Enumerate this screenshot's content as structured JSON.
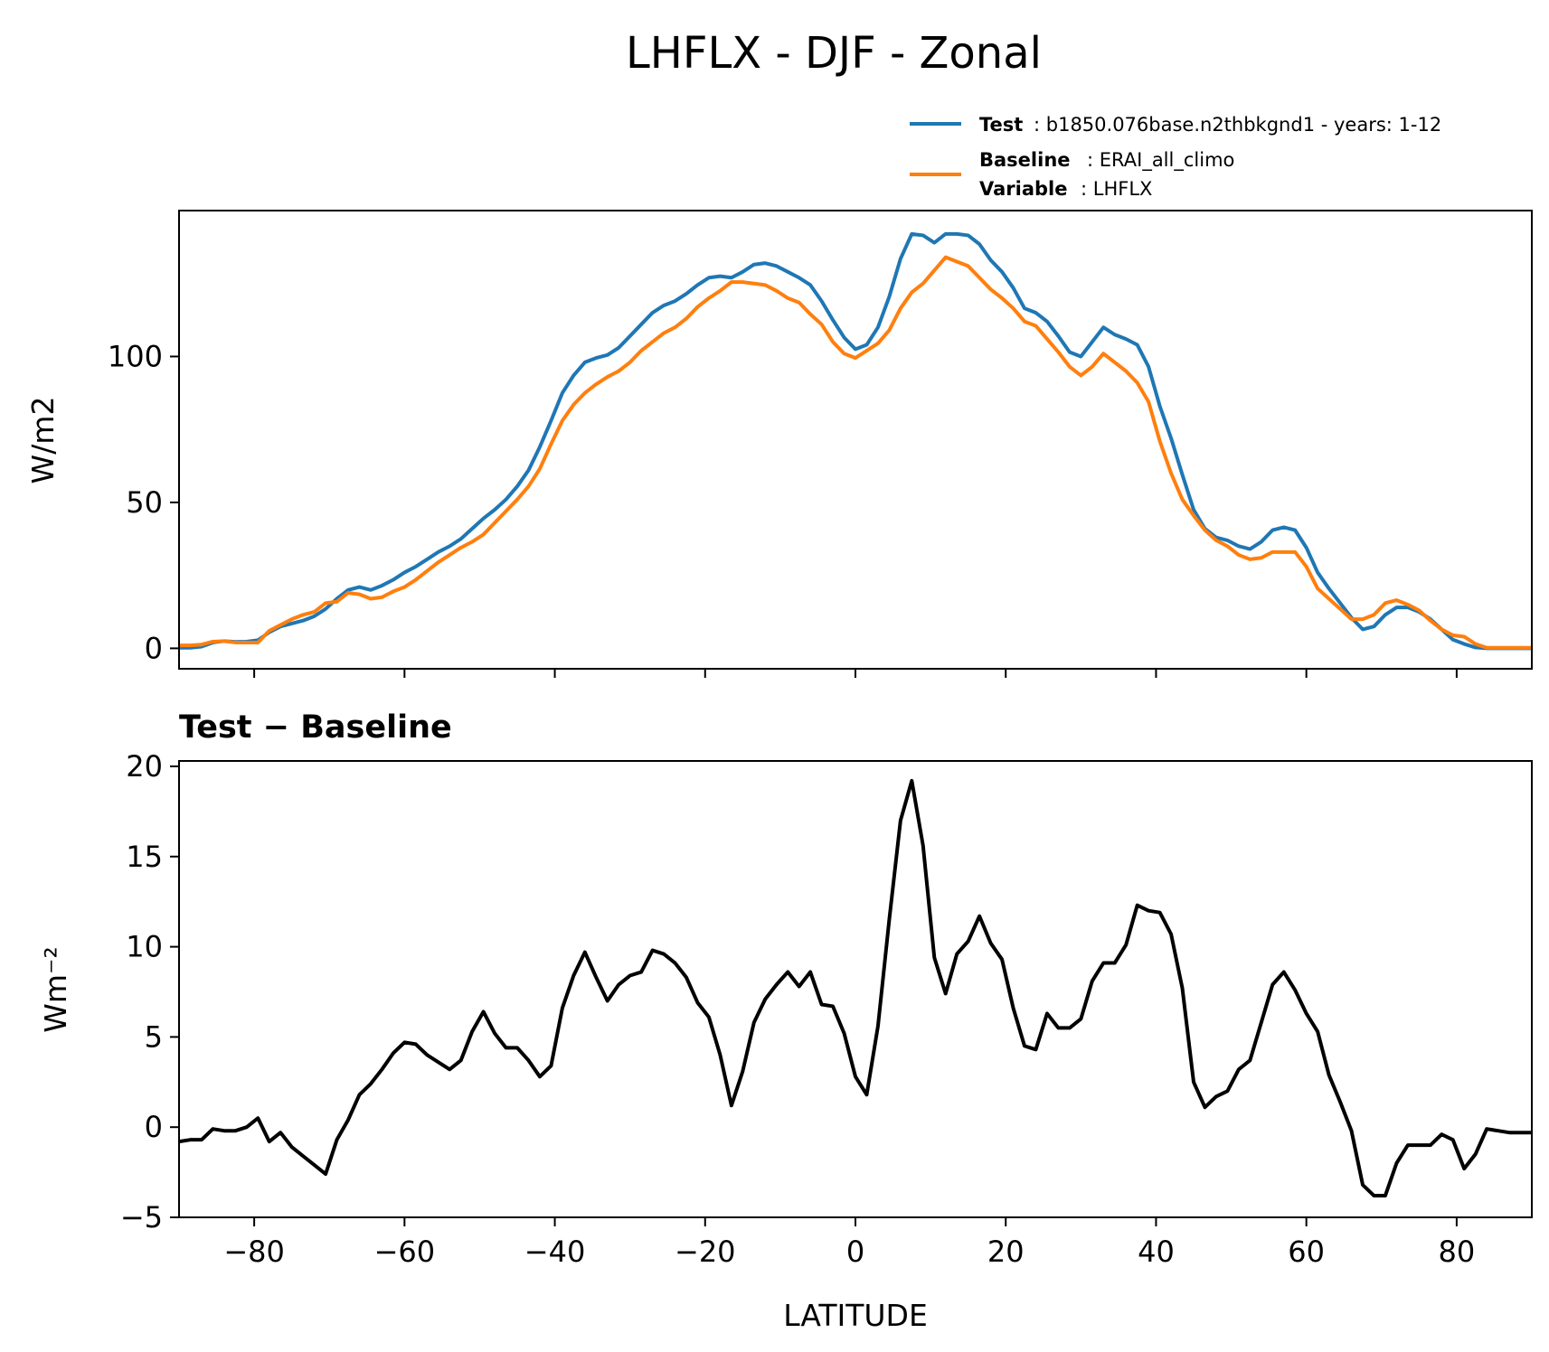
{
  "figure": {
    "title": "LHFLX - DJF - Zonal"
  },
  "legend": {
    "test_label": "Test",
    "test_text": ": b1850.076base.n2thbkgnd1 - years: 1-12",
    "baseline_label": "Baseline",
    "baseline_text": ": ERAI_all_climo",
    "variable_label": "Variable",
    "variable_text": ": LHFLX"
  },
  "colors": {
    "test": "#1f77b4",
    "baseline": "#ff7f0e",
    "diff": "#000000"
  },
  "chart_data": [
    {
      "type": "line",
      "title": "",
      "xlabel": "",
      "ylabel": "W/m2",
      "xlim": [
        -90,
        90
      ],
      "ylim": [
        -7,
        150
      ],
      "xticks": [
        -80,
        -60,
        -40,
        -20,
        0,
        20,
        40,
        60,
        80
      ],
      "yticks": [
        0,
        50,
        100
      ],
      "ytick_labels": [
        "0",
        "50",
        "100"
      ],
      "legend_position": "above-right",
      "grid": false,
      "x": [
        -90,
        -88.5,
        -87,
        -85.5,
        -84,
        -82.5,
        -81,
        -79.5,
        -78,
        -76.5,
        -75,
        -73.5,
        -72,
        -70.5,
        -69,
        -67.5,
        -66,
        -64.5,
        -63,
        -61.5,
        -60,
        -58.5,
        -57,
        -55.5,
        -54,
        -52.5,
        -51,
        -49.5,
        -48,
        -46.5,
        -45,
        -43.5,
        -42,
        -40.5,
        -39,
        -37.5,
        -36,
        -34.5,
        -33,
        -31.5,
        -30,
        -28.5,
        -27,
        -25.5,
        -24,
        -22.5,
        -21,
        -19.5,
        -18,
        -16.5,
        -15,
        -13.5,
        -12,
        -10.5,
        -9,
        -7.5,
        -6,
        -4.5,
        -3,
        -1.5,
        0,
        1.5,
        3,
        4.5,
        6,
        7.5,
        9,
        10.5,
        12,
        13.5,
        15,
        16.5,
        18,
        19.5,
        21,
        22.5,
        24,
        25.5,
        27,
        28.5,
        30,
        31.5,
        33,
        34.5,
        36,
        37.5,
        39,
        40.5,
        42,
        43.5,
        45,
        46.5,
        48,
        49.5,
        51,
        52.5,
        54,
        55.5,
        57,
        58.5,
        60,
        61.5,
        63,
        64.5,
        66,
        67.5,
        69,
        70.5,
        72,
        73.5,
        75,
        76.5,
        78,
        79.5,
        81,
        82.5,
        84,
        85.5,
        87,
        88.5,
        90
      ],
      "series": [
        {
          "name": "Test",
          "color": "#1f77b4",
          "values": [
            0.2,
            0.2,
            0.6,
            2.0,
            2.5,
            2.2,
            2.3,
            2.8,
            5.5,
            7.5,
            8.5,
            9.5,
            11.0,
            13.5,
            17.0,
            20.0,
            21.0,
            20.0,
            21.5,
            23.5,
            26.0,
            28.0,
            30.5,
            33.0,
            35.0,
            37.5,
            41.0,
            44.5,
            47.5,
            51.0,
            55.5,
            61.0,
            69.0,
            78.0,
            87.5,
            93.5,
            98.0,
            99.5,
            100.5,
            103.0,
            107.0,
            111.0,
            115.0,
            117.5,
            119.0,
            121.5,
            124.5,
            127.0,
            127.5,
            127.0,
            129.0,
            131.5,
            132.0,
            131.0,
            129.0,
            127.0,
            124.5,
            119.0,
            112.5,
            106.5,
            102.5,
            104.0,
            110.0,
            120.5,
            133.5,
            142.0,
            141.5,
            139.0,
            142.0,
            142.0,
            141.5,
            138.5,
            133.0,
            129.0,
            123.5,
            116.5,
            115.0,
            112.0,
            107.0,
            101.5,
            100.0,
            105.0,
            110.0,
            107.5,
            106.0,
            104.0,
            96.5,
            83.0,
            72.0,
            59.5,
            47.5,
            41.0,
            38.0,
            37.0,
            35.0,
            34.0,
            36.5,
            40.5,
            41.5,
            40.5,
            34.5,
            26.0,
            20.5,
            15.5,
            10.5,
            6.5,
            7.5,
            11.5,
            14.0,
            14.0,
            12.5,
            10.0,
            6.5,
            3.0,
            1.5,
            0.3,
            0,
            0,
            0,
            0,
            0
          ]
        },
        {
          "name": "Baseline",
          "color": "#ff7f0e",
          "values": [
            1.0,
            1.0,
            1.3,
            2.3,
            2.5,
            2.0,
            2.0,
            2.0,
            6.0,
            8.0,
            10.0,
            11.5,
            12.5,
            15.5,
            16.0,
            19.0,
            18.5,
            17.0,
            17.5,
            19.5,
            21.0,
            23.5,
            26.5,
            29.5,
            32.0,
            34.5,
            36.5,
            39.0,
            43.0,
            47.0,
            51.0,
            55.5,
            61.5,
            70.0,
            78.0,
            83.5,
            87.5,
            90.5,
            93.0,
            95.0,
            98.0,
            102.0,
            105.0,
            108.0,
            110.0,
            113.0,
            117.0,
            120.0,
            122.5,
            125.5,
            125.5,
            125.0,
            124.5,
            122.5,
            120.0,
            118.5,
            114.5,
            111.0,
            105.0,
            101.0,
            99.5,
            102.0,
            104.5,
            109.0,
            116.5,
            122.0,
            125.0,
            129.5,
            134.0,
            132.5,
            131.0,
            127.0,
            123.0,
            120.0,
            116.5,
            112.0,
            110.5,
            106.0,
            101.5,
            96.5,
            93.5,
            96.5,
            101.0,
            98.0,
            95.0,
            91.0,
            84.5,
            71.0,
            60.0,
            51.0,
            45.5,
            40.5,
            37.0,
            35.0,
            32.0,
            30.5,
            31.0,
            33.0,
            33.0,
            33.0,
            28.0,
            20.5,
            17.0,
            13.5,
            10.0,
            10.0,
            11.5,
            15.5,
            16.5,
            15.0,
            13.0,
            9.5,
            6.5,
            4.5,
            4.0,
            1.5,
            0.2,
            0.2,
            0.2,
            0.2,
            0.2
          ]
        }
      ]
    },
    {
      "type": "line",
      "title": "Test − Baseline",
      "xlabel": "LATITUDE",
      "ylabel": "Wm⁻²",
      "xlim": [
        -90,
        90
      ],
      "ylim": [
        -5,
        20.3
      ],
      "xticks": [
        -80,
        -60,
        -40,
        -20,
        0,
        20,
        40,
        60,
        80
      ],
      "xtick_labels": [
        "−80",
        "−60",
        "−40",
        "−20",
        "0",
        "20",
        "40",
        "60",
        "80"
      ],
      "yticks": [
        -5,
        0,
        5,
        10,
        15,
        20
      ],
      "ytick_labels": [
        "−5",
        "0",
        "5",
        "10",
        "15",
        "20"
      ],
      "grid": false,
      "x": [
        -90,
        -88.5,
        -87,
        -85.5,
        -84,
        -82.5,
        -81,
        -79.5,
        -78,
        -76.5,
        -75,
        -73.5,
        -72,
        -70.5,
        -69,
        -67.5,
        -66,
        -64.5,
        -63,
        -61.5,
        -60,
        -58.5,
        -57,
        -55.5,
        -54,
        -52.5,
        -51,
        -49.5,
        -48,
        -46.5,
        -45,
        -43.5,
        -42,
        -40.5,
        -39,
        -37.5,
        -36,
        -34.5,
        -33,
        -31.5,
        -30,
        -28.5,
        -27,
        -25.5,
        -24,
        -22.5,
        -21,
        -19.5,
        -18,
        -16.5,
        -15,
        -13.5,
        -12,
        -10.5,
        -9,
        -7.5,
        -6,
        -4.5,
        -3,
        -1.5,
        0,
        1.5,
        3,
        4.5,
        6,
        7.5,
        9,
        10.5,
        12,
        13.5,
        15,
        16.5,
        18,
        19.5,
        21,
        22.5,
        24,
        25.5,
        27,
        28.5,
        30,
        31.5,
        33,
        34.5,
        36,
        37.5,
        39,
        40.5,
        42,
        43.5,
        45,
        46.5,
        48,
        49.5,
        51,
        52.5,
        54,
        55.5,
        57,
        58.5,
        60,
        61.5,
        63,
        64.5,
        66,
        67.5,
        69,
        70.5,
        72,
        73.5,
        75,
        76.5,
        78,
        79.5,
        81,
        82.5,
        84,
        85.5,
        87,
        88.5,
        90
      ],
      "series": [
        {
          "name": "",
          "color": "#000000",
          "values": [
            -0.8,
            -0.7,
            -0.7,
            -0.1,
            -0.2,
            -0.2,
            0.0,
            0.5,
            -0.8,
            -0.3,
            -1.1,
            -1.6,
            -2.1,
            -2.6,
            -0.7,
            0.4,
            1.8,
            2.4,
            3.2,
            4.1,
            4.7,
            4.6,
            4.0,
            3.6,
            3.2,
            3.7,
            5.3,
            6.4,
            5.2,
            4.4,
            4.4,
            3.7,
            2.8,
            3.4,
            6.6,
            8.4,
            9.7,
            8.3,
            7.0,
            7.9,
            8.4,
            8.6,
            9.8,
            9.6,
            9.1,
            8.3,
            6.9,
            6.1,
            4.0,
            1.2,
            3.1,
            5.8,
            7.1,
            7.9,
            8.6,
            7.8,
            8.6,
            6.8,
            6.7,
            5.2,
            2.8,
            1.8,
            5.6,
            11.5,
            17.0,
            19.2,
            15.6,
            9.4,
            7.4,
            9.6,
            10.3,
            11.7,
            10.2,
            9.3,
            6.6,
            4.5,
            4.3,
            6.3,
            5.5,
            5.5,
            6.0,
            8.1,
            9.1,
            9.1,
            10.1,
            12.3,
            12.0,
            11.9,
            10.7,
            7.7,
            2.5,
            1.1,
            1.7,
            2.0,
            3.2,
            3.7,
            5.8,
            7.9,
            8.6,
            7.6,
            6.3,
            5.3,
            2.9,
            1.4,
            -0.2,
            -3.2,
            -3.8,
            -3.8,
            -2.0,
            -1.0,
            -1.0,
            -1.0,
            -0.4,
            -0.7,
            -2.3,
            -1.5,
            -0.1,
            -0.2,
            -0.3,
            -0.3,
            -0.3
          ]
        }
      ]
    }
  ]
}
